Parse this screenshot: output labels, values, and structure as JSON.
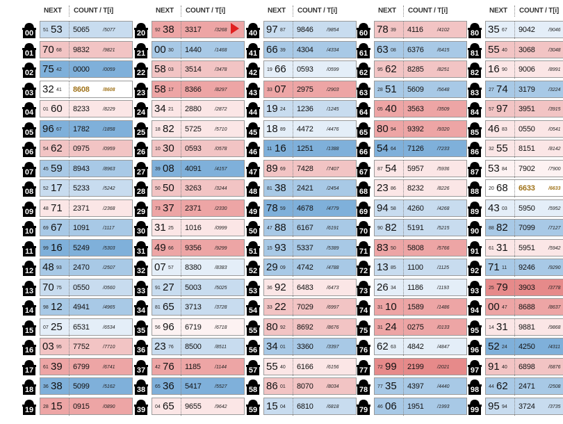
{
  "headers": {
    "next": "NEXT",
    "count": "COUNT / T[i]"
  },
  "pointer_row": "40",
  "highlight_color": "#a0731a",
  "columns": [
    {
      "rows": [
        {
          "id": "00",
          "nb": "53",
          "ns": "51",
          "order": "pre",
          "cb": "5065",
          "cs": "/5077",
          "bg": "#c8dcef"
        },
        {
          "id": "01",
          "nb": "70",
          "ns": "68",
          "order": "post",
          "cb": "9832",
          "cs": "/9821",
          "bg": "#f2c4c4"
        },
        {
          "id": "02",
          "nb": "75",
          "ns": "42",
          "order": "post",
          "cb": "0000",
          "cs": "/0059",
          "bg": "#7fb0da"
        },
        {
          "id": "03",
          "nb": "32",
          "ns": "41",
          "order": "post",
          "cb": "8608",
          "cs": "/8608",
          "bg": "#ffffff",
          "hl": true
        },
        {
          "id": "04",
          "nb": "60",
          "ns": "01",
          "order": "pre",
          "cb": "8233",
          "cs": "/8229",
          "bg": "#fbe6e6"
        },
        {
          "id": "05",
          "nb": "96",
          "ns": "67",
          "order": "post",
          "cb": "1782",
          "cs": "/1858",
          "bg": "#7fb0da"
        },
        {
          "id": "06",
          "nb": "62",
          "ns": "54",
          "order": "pre",
          "cb": "0975",
          "cs": "/0959",
          "bg": "#f2c4c4"
        },
        {
          "id": "07",
          "nb": "59",
          "ns": "45",
          "order": "pre",
          "cb": "8943",
          "cs": "/8963",
          "bg": "#a8c9e6"
        },
        {
          "id": "08",
          "nb": "17",
          "ns": "52",
          "order": "pre",
          "cb": "5233",
          "cs": "/5242",
          "bg": "#c8dcef"
        },
        {
          "id": "09",
          "nb": "71",
          "ns": "48",
          "order": "pre",
          "cb": "2371",
          "cs": "/2368",
          "bg": "#fbe6e6"
        },
        {
          "id": "10",
          "nb": "67",
          "ns": "69",
          "order": "pre",
          "cb": "1091",
          "cs": "/1117",
          "bg": "#a8c9e6"
        },
        {
          "id": "11",
          "nb": "16",
          "ns": "99",
          "order": "pre",
          "cb": "5249",
          "cs": "/5303",
          "bg": "#7fb0da"
        },
        {
          "id": "12",
          "nb": "48",
          "ns": "93",
          "order": "post",
          "cb": "2470",
          "cs": "/2507",
          "bg": "#a8c9e6"
        },
        {
          "id": "13",
          "nb": "70",
          "ns": "75",
          "order": "post",
          "cb": "0550",
          "cs": "/0560",
          "bg": "#c8dcef"
        },
        {
          "id": "14",
          "nb": "12",
          "ns": "98",
          "order": "pre",
          "cb": "4941",
          "cs": "/4965",
          "bg": "#a8c9e6"
        },
        {
          "id": "15",
          "nb": "25",
          "ns": "07",
          "order": "pre",
          "cb": "6531",
          "cs": "/6534",
          "bg": "#e4eef8"
        },
        {
          "id": "16",
          "nb": "03",
          "ns": "95",
          "order": "post",
          "cb": "7752",
          "cs": "/7710",
          "bg": "#f2c4c4"
        },
        {
          "id": "17",
          "nb": "39",
          "ns": "61",
          "order": "pre",
          "cb": "6799",
          "cs": "/6741",
          "bg": "#eda5a5"
        },
        {
          "id": "18",
          "nb": "38",
          "ns": "36",
          "order": "pre",
          "cb": "5099",
          "cs": "/5162",
          "bg": "#7fb0da"
        },
        {
          "id": "19",
          "nb": "15",
          "ns": "28",
          "order": "pre",
          "cb": "0915",
          "cs": "/0890",
          "bg": "#eda5a5"
        }
      ]
    },
    {
      "rows": [
        {
          "id": "20",
          "nb": "38",
          "ns": "92",
          "order": "pre",
          "cb": "3317",
          "cs": "/3268",
          "bg": "#eda5a5"
        },
        {
          "id": "21",
          "nb": "00",
          "ns": "30",
          "order": "post",
          "cb": "1440",
          "cs": "/1468",
          "bg": "#a8c9e6"
        },
        {
          "id": "22",
          "nb": "58",
          "ns": "03",
          "order": "post",
          "cb": "3514",
          "cs": "/3478",
          "bg": "#f2c4c4"
        },
        {
          "id": "23",
          "nb": "58",
          "ns": "17",
          "order": "post",
          "cb": "8366",
          "cs": "/8297",
          "bg": "#eda5a5"
        },
        {
          "id": "24",
          "nb": "34",
          "ns": "21",
          "order": "post",
          "cb": "2880",
          "cs": "/2872",
          "bg": "#fbe6e6"
        },
        {
          "id": "25",
          "nb": "82",
          "ns": "18",
          "order": "pre",
          "cb": "5725",
          "cs": "/5710",
          "bg": "#fbe6e6"
        },
        {
          "id": "26",
          "nb": "30",
          "ns": "10",
          "order": "pre",
          "cb": "0593",
          "cs": "/0578",
          "bg": "#f2c4c4"
        },
        {
          "id": "27",
          "nb": "08",
          "ns": "39",
          "order": "pre",
          "cb": "4091",
          "cs": "/4157",
          "bg": "#7fb0da"
        },
        {
          "id": "28",
          "nb": "50",
          "ns": "50",
          "order": "pre",
          "cb": "3263",
          "cs": "/3244",
          "bg": "#f2c4c4"
        },
        {
          "id": "29",
          "nb": "37",
          "ns": "73",
          "order": "pre",
          "cb": "2371",
          "cs": "/2330",
          "bg": "#eda5a5"
        },
        {
          "id": "30",
          "nb": "31",
          "ns": "25",
          "order": "post",
          "cb": "1016",
          "cs": "/0999",
          "bg": "#fbe6e6"
        },
        {
          "id": "31",
          "nb": "49",
          "ns": "66",
          "order": "post",
          "cb": "9356",
          "cs": "/9299",
          "bg": "#eda5a5"
        },
        {
          "id": "32",
          "nb": "07",
          "ns": "57",
          "order": "post",
          "cb": "8380",
          "cs": "/8383",
          "bg": "#e4eef8"
        },
        {
          "id": "33",
          "nb": "27",
          "ns": "91",
          "order": "pre",
          "cb": "5003",
          "cs": "/5025",
          "bg": "#c8dcef"
        },
        {
          "id": "34",
          "nb": "65",
          "ns": "81",
          "order": "pre",
          "cb": "3713",
          "cs": "/3728",
          "bg": "#c8dcef"
        },
        {
          "id": "35",
          "nb": "96",
          "ns": "56",
          "order": "pre",
          "cb": "6719",
          "cs": "/6718",
          "bg": "#fdf2f2"
        },
        {
          "id": "36",
          "nb": "23",
          "ns": "76",
          "order": "post",
          "cb": "8500",
          "cs": "/8511",
          "bg": "#c8dcef"
        },
        {
          "id": "37",
          "nb": "76",
          "ns": "42",
          "order": "pre",
          "cb": "1185",
          "cs": "/1144",
          "bg": "#eda5a5"
        },
        {
          "id": "38",
          "nb": "36",
          "ns": "65",
          "order": "pre",
          "cb": "5417",
          "cs": "/5527",
          "bg": "#7fb0da"
        },
        {
          "id": "39",
          "nb": "65",
          "ns": "04",
          "order": "pre",
          "cb": "9655",
          "cs": "/9642",
          "bg": "#fbe6e6"
        }
      ]
    },
    {
      "rows": [
        {
          "id": "40",
          "nb": "97",
          "ns": "87",
          "order": "post",
          "cb": "9846",
          "cs": "/9854",
          "bg": "#c8dcef"
        },
        {
          "id": "41",
          "nb": "66",
          "ns": "39",
          "order": "post",
          "cb": "4304",
          "cs": "/4334",
          "bg": "#a8c9e6"
        },
        {
          "id": "42",
          "nb": "66",
          "ns": "19",
          "order": "pre",
          "cb": "0593",
          "cs": "/0599",
          "bg": "#e4eef8"
        },
        {
          "id": "43",
          "nb": "07",
          "ns": "33",
          "order": "pre",
          "cb": "2975",
          "cs": "/2903",
          "bg": "#eda5a5"
        },
        {
          "id": "44",
          "nb": "19",
          "ns": "24",
          "order": "post",
          "cb": "1236",
          "cs": "/1245",
          "bg": "#c8dcef"
        },
        {
          "id": "45",
          "nb": "18",
          "ns": "89",
          "order": "post",
          "cb": "4472",
          "cs": "/4476",
          "bg": "#e4eef8"
        },
        {
          "id": "46",
          "nb": "16",
          "ns": "11",
          "order": "pre",
          "cb": "1251",
          "cs": "/1388",
          "bg": "#7fb0da"
        },
        {
          "id": "47",
          "nb": "89",
          "ns": "69",
          "order": "post",
          "cb": "7428",
          "cs": "/7407",
          "bg": "#f2c4c4"
        },
        {
          "id": "48",
          "nb": "38",
          "ns": "81",
          "order": "pre",
          "cb": "2421",
          "cs": "/2454",
          "bg": "#a8c9e6"
        },
        {
          "id": "49",
          "nb": "78",
          "ns": "59",
          "order": "post",
          "cb": "4678",
          "cs": "/4779",
          "bg": "#7fb0da"
        },
        {
          "id": "50",
          "nb": "88",
          "ns": "47",
          "order": "pre",
          "cb": "6167",
          "cs": "/6191",
          "bg": "#a8c9e6"
        },
        {
          "id": "51",
          "nb": "93",
          "ns": "15",
          "order": "pre",
          "cb": "5337",
          "cs": "/5389",
          "bg": "#a8c9e6"
        },
        {
          "id": "52",
          "nb": "29",
          "ns": "09",
          "order": "post",
          "cb": "4742",
          "cs": "/4788",
          "bg": "#a8c9e6"
        },
        {
          "id": "53",
          "nb": "92",
          "ns": "36",
          "order": "pre",
          "cb": "6483",
          "cs": "/6473",
          "bg": "#fbe6e6"
        },
        {
          "id": "54",
          "nb": "22",
          "ns": "33",
          "order": "pre",
          "cb": "7029",
          "cs": "/6997",
          "bg": "#f2c4c4"
        },
        {
          "id": "55",
          "nb": "80",
          "ns": "92",
          "order": "post",
          "cb": "8692",
          "cs": "/8676",
          "bg": "#f2c4c4"
        },
        {
          "id": "56",
          "nb": "34",
          "ns": "01",
          "order": "post",
          "cb": "3360",
          "cs": "/3397",
          "bg": "#a8c9e6"
        },
        {
          "id": "57",
          "nb": "55",
          "ns": "40",
          "order": "post",
          "cb": "6166",
          "cs": "/6156",
          "bg": "#fbe6e6"
        },
        {
          "id": "58",
          "nb": "86",
          "ns": "01",
          "order": "post",
          "cb": "8070",
          "cs": "/8034",
          "bg": "#f2c4c4"
        },
        {
          "id": "59",
          "nb": "15",
          "ns": "04",
          "order": "post",
          "cb": "6810",
          "cs": "/6818",
          "bg": "#c8dcef"
        }
      ]
    },
    {
      "rows": [
        {
          "id": "60",
          "nb": "78",
          "ns": "39",
          "order": "post",
          "cb": "4116",
          "cs": "/4102",
          "bg": "#f2c4c4"
        },
        {
          "id": "61",
          "nb": "63",
          "ns": "08",
          "order": "post",
          "cb": "6376",
          "cs": "/6415",
          "bg": "#a8c9e6"
        },
        {
          "id": "62",
          "nb": "62",
          "ns": "95",
          "order": "pre",
          "cb": "8285",
          "cs": "/8251",
          "bg": "#f2c4c4"
        },
        {
          "id": "63",
          "nb": "51",
          "ns": "28",
          "order": "pre",
          "cb": "5609",
          "cs": "/5648",
          "bg": "#a8c9e6"
        },
        {
          "id": "64",
          "nb": "40",
          "ns": "05",
          "order": "pre",
          "cb": "3563",
          "cs": "/3509",
          "bg": "#eda5a5"
        },
        {
          "id": "65",
          "nb": "80",
          "ns": "94",
          "order": "post",
          "cb": "9392",
          "cs": "/9320",
          "bg": "#eda5a5"
        },
        {
          "id": "66",
          "nb": "54",
          "ns": "64",
          "order": "post",
          "cb": "7126",
          "cs": "/7233",
          "bg": "#7fb0da"
        },
        {
          "id": "67",
          "nb": "54",
          "ns": "87",
          "order": "pre",
          "cb": "5957",
          "cs": "/5936",
          "bg": "#fbe6e6"
        },
        {
          "id": "68",
          "nb": "23",
          "ns": "86",
          "order": "post",
          "cb": "8232",
          "cs": "/8226",
          "bg": "#fbe6e6"
        },
        {
          "id": "69",
          "nb": "94",
          "ns": "58",
          "order": "post",
          "cb": "4260",
          "cs": "/4268",
          "bg": "#c8dcef"
        },
        {
          "id": "70",
          "nb": "82",
          "ns": "90",
          "order": "pre",
          "cb": "5191",
          "cs": "/5215",
          "bg": "#c8dcef"
        },
        {
          "id": "71",
          "nb": "83",
          "ns": "50",
          "order": "post",
          "cb": "5808",
          "cs": "/5766",
          "bg": "#eda5a5"
        },
        {
          "id": "72",
          "nb": "13",
          "ns": "85",
          "order": "post",
          "cb": "1100",
          "cs": "/1125",
          "bg": "#c8dcef"
        },
        {
          "id": "73",
          "nb": "26",
          "ns": "34",
          "order": "post",
          "cb": "1186",
          "cs": "/1193",
          "bg": "#e4eef8"
        },
        {
          "id": "74",
          "nb": "10",
          "ns": "31",
          "order": "pre",
          "cb": "1589",
          "cs": "/1486",
          "bg": "#eda5a5"
        },
        {
          "id": "75",
          "nb": "24",
          "ns": "31",
          "order": "pre",
          "cb": "0275",
          "cs": "/0133",
          "bg": "#eda5a5"
        },
        {
          "id": "76",
          "nb": "62",
          "ns": "63",
          "order": "post",
          "cb": "4842",
          "cs": "/4847",
          "bg": "#e4eef8"
        },
        {
          "id": "77",
          "nb": "99",
          "ns": "72",
          "order": "pre",
          "cb": "2199",
          "cs": "/2021",
          "bg": "#e68a8a"
        },
        {
          "id": "78",
          "nb": "35",
          "ns": "77",
          "order": "pre",
          "cb": "4397",
          "cs": "/4440",
          "bg": "#a8c9e6"
        },
        {
          "id": "79",
          "nb": "06",
          "ns": "46",
          "order": "pre",
          "cb": "1951",
          "cs": "/1993",
          "bg": "#a8c9e6"
        }
      ]
    },
    {
      "rows": [
        {
          "id": "80",
          "nb": "35",
          "ns": "67",
          "order": "post",
          "cb": "9042",
          "cs": "/9046",
          "bg": "#e4eef8"
        },
        {
          "id": "81",
          "nb": "55",
          "ns": "40",
          "order": "post",
          "cb": "3068",
          "cs": "/3048",
          "bg": "#f2c4c4"
        },
        {
          "id": "82",
          "nb": "16",
          "ns": "90",
          "order": "post",
          "cb": "9006",
          "cs": "/8991",
          "bg": "#fbe6e6"
        },
        {
          "id": "83",
          "nb": "74",
          "ns": "27",
          "order": "pre",
          "cb": "3179",
          "cs": "/3224",
          "bg": "#a8c9e6"
        },
        {
          "id": "84",
          "nb": "97",
          "ns": "57",
          "order": "pre",
          "cb": "3951",
          "cs": "/3915",
          "bg": "#f2c4c4"
        },
        {
          "id": "85",
          "nb": "46",
          "ns": "83",
          "order": "post",
          "cb": "0550",
          "cs": "/0541",
          "bg": "#fbe6e6"
        },
        {
          "id": "86",
          "nb": "55",
          "ns": "32",
          "order": "pre",
          "cb": "8151",
          "cs": "/8142",
          "bg": "#fbe6e6"
        },
        {
          "id": "87",
          "nb": "53",
          "ns": "84",
          "order": "post",
          "cb": "7902",
          "cs": "/7900",
          "bg": "#fdf2f2"
        },
        {
          "id": "88",
          "nb": "68",
          "ns": "20",
          "order": "pre",
          "cb": "6633",
          "cs": "/6633",
          "bg": "#ffffff",
          "hl": true
        },
        {
          "id": "89",
          "nb": "43",
          "ns": "03",
          "order": "post",
          "cb": "5950",
          "cs": "/5952",
          "bg": "#e4eef8"
        },
        {
          "id": "90",
          "nb": "82",
          "ns": "88",
          "order": "pre",
          "cb": "7099",
          "cs": "/7127",
          "bg": "#a8c9e6"
        },
        {
          "id": "91",
          "nb": "31",
          "ns": "61",
          "order": "pre",
          "cb": "5951",
          "cs": "/5942",
          "bg": "#fbe6e6"
        },
        {
          "id": "92",
          "nb": "71",
          "ns": "11",
          "order": "post",
          "cb": "9246",
          "cs": "/9290",
          "bg": "#a8c9e6"
        },
        {
          "id": "93",
          "nb": "79",
          "ns": "25",
          "order": "pre",
          "cb": "3903",
          "cs": "/3778",
          "bg": "#e68a8a"
        },
        {
          "id": "94",
          "nb": "00",
          "ns": "47",
          "order": "post",
          "cb": "8688",
          "cs": "/8637",
          "bg": "#eda5a5"
        },
        {
          "id": "95",
          "nb": "31",
          "ns": "14",
          "order": "pre",
          "cb": "9881",
          "cs": "/9868",
          "bg": "#fbe6e6"
        },
        {
          "id": "96",
          "nb": "52",
          "ns": "24",
          "order": "post",
          "cb": "4250",
          "cs": "/4311",
          "bg": "#7fb0da"
        },
        {
          "id": "97",
          "nb": "91",
          "ns": "40",
          "order": "post",
          "cb": "6898",
          "cs": "/6876",
          "bg": "#f2c4c4"
        },
        {
          "id": "98",
          "nb": "62",
          "ns": "44",
          "order": "pre",
          "cb": "2471",
          "cs": "/2508",
          "bg": "#a8c9e6"
        },
        {
          "id": "99",
          "nb": "95",
          "ns": "94",
          "order": "post",
          "cb": "3724",
          "cs": "/3735",
          "bg": "#c8dcef"
        }
      ]
    }
  ]
}
